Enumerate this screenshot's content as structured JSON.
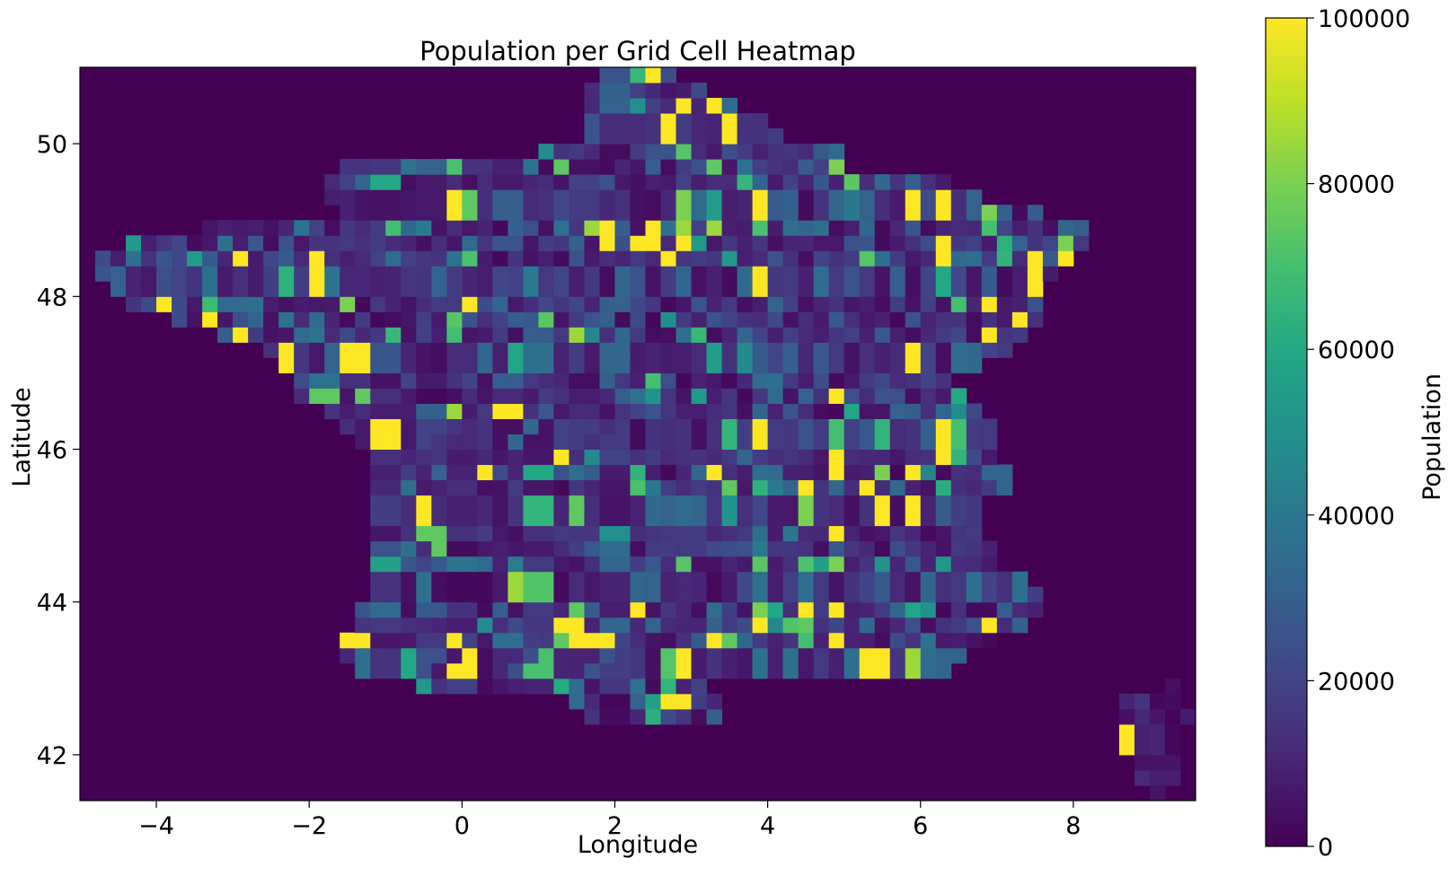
{
  "chart_data": {
    "type": "heatmap",
    "title": "Population per Grid Cell Heatmap",
    "xlabel": "Longitude",
    "ylabel": "Latitude",
    "xlim": [
      -5.0,
      9.6
    ],
    "ylim": [
      41.4,
      51.0
    ],
    "cell_size_deg": 0.2,
    "x_ticks": [
      -4,
      -2,
      0,
      2,
      4,
      6,
      8
    ],
    "x_tick_labels": [
      "−4",
      "−2",
      "0",
      "2",
      "4",
      "6",
      "8"
    ],
    "y_ticks": [
      42,
      44,
      46,
      48,
      50
    ],
    "y_tick_labels": [
      "42",
      "44",
      "46",
      "48",
      "50"
    ],
    "colormap": "viridis",
    "colorbar": {
      "label": "Population",
      "min": 0,
      "max": 100000,
      "ticks": [
        0,
        20000,
        40000,
        60000,
        80000,
        100000
      ],
      "tick_labels": [
        "0",
        "20000",
        "40000",
        "60000",
        "80000",
        "100000"
      ]
    },
    "background_value": 0,
    "land_extent": [
      [
        42.5,
        1.6,
        3.4
      ],
      [
        42.7,
        1.4,
        3.4
      ],
      [
        42.9,
        -0.6,
        3.2
      ],
      [
        43.1,
        -1.4,
        6.4
      ],
      [
        43.3,
        -1.6,
        6.6
      ],
      [
        43.5,
        -1.6,
        7.0
      ],
      [
        43.7,
        -1.4,
        7.4
      ],
      [
        43.9,
        -1.4,
        7.6
      ],
      [
        44.1,
        -1.2,
        7.6
      ],
      [
        44.3,
        -1.2,
        7.4
      ],
      [
        44.5,
        -1.2,
        7.0
      ],
      [
        44.7,
        -1.2,
        7.0
      ],
      [
        44.9,
        -1.2,
        6.8
      ],
      [
        45.1,
        -1.2,
        6.8
      ],
      [
        45.3,
        -1.2,
        6.8
      ],
      [
        45.5,
        -1.2,
        7.2
      ],
      [
        45.7,
        -1.2,
        7.2
      ],
      [
        45.9,
        -1.2,
        7.0
      ],
      [
        46.1,
        -1.4,
        7.0
      ],
      [
        46.3,
        -1.6,
        7.0
      ],
      [
        46.5,
        -1.8,
        6.8
      ],
      [
        46.7,
        -2.2,
        6.6
      ],
      [
        46.9,
        -2.2,
        6.4
      ],
      [
        47.1,
        -2.4,
        6.8
      ],
      [
        47.3,
        -2.6,
        7.2
      ],
      [
        47.5,
        -3.2,
        7.4
      ],
      [
        47.7,
        -3.8,
        7.6
      ],
      [
        47.9,
        -4.4,
        7.6
      ],
      [
        48.1,
        -4.6,
        7.6
      ],
      [
        48.3,
        -4.8,
        7.8
      ],
      [
        48.5,
        -4.8,
        8.0
      ],
      [
        48.7,
        -4.4,
        8.2
      ],
      [
        48.9,
        -3.4,
        8.2
      ],
      [
        49.1,
        -1.6,
        7.6
      ],
      [
        49.3,
        -1.8,
        6.8
      ],
      [
        49.5,
        -1.8,
        6.4
      ],
      [
        49.7,
        -1.6,
        5.0
      ],
      [
        49.9,
        1.0,
        5.0
      ],
      [
        50.1,
        1.6,
        4.2
      ],
      [
        50.3,
        1.6,
        4.0
      ],
      [
        50.5,
        1.6,
        3.6
      ],
      [
        50.7,
        1.6,
        3.2
      ],
      [
        50.9,
        1.8,
        2.8
      ]
    ],
    "corsica_extent": [
      [
        41.5,
        9.0,
        9.2
      ],
      [
        41.7,
        8.8,
        9.4
      ],
      [
        41.9,
        8.8,
        9.4
      ],
      [
        42.1,
        8.6,
        9.4
      ],
      [
        42.3,
        8.6,
        9.4
      ],
      [
        42.5,
        8.6,
        9.6
      ],
      [
        42.7,
        8.6,
        9.4
      ],
      [
        42.9,
        9.2,
        9.4
      ]
    ],
    "hotspots": [
      [
        2.3,
        48.8,
        100000
      ],
      [
        2.5,
        48.7,
        100000
      ],
      [
        2.1,
        48.9,
        100000
      ],
      [
        2.5,
        49.0,
        100000
      ],
      [
        2.7,
        48.6,
        100000
      ],
      [
        2.9,
        48.8,
        100000
      ],
      [
        1.9,
        48.7,
        100000
      ],
      [
        3.1,
        50.6,
        100000
      ],
      [
        2.9,
        50.5,
        100000
      ],
      [
        3.3,
        50.5,
        100000
      ],
      [
        3.5,
        50.3,
        100000
      ],
      [
        3.7,
        50.3,
        100000
      ],
      [
        2.7,
        50.3,
        100000
      ],
      [
        2.5,
        50.9,
        100000
      ],
      [
        2.2,
        50.0,
        100000
      ],
      [
        4.9,
        45.9,
        100000
      ],
      [
        4.9,
        45.7,
        100000
      ],
      [
        5.1,
        45.7,
        100000
      ],
      [
        5.3,
        45.6,
        100000
      ],
      [
        4.6,
        45.6,
        100000
      ],
      [
        4.4,
        45.4,
        100000
      ],
      [
        5.7,
        45.2,
        100000
      ],
      [
        5.9,
        45.2,
        100000
      ],
      [
        5.5,
        43.4,
        100000
      ],
      [
        5.3,
        43.3,
        100000
      ],
      [
        5.7,
        43.3,
        100000
      ],
      [
        5.9,
        43.1,
        100000
      ],
      [
        7.3,
        43.6,
        100000
      ],
      [
        7.1,
        43.7,
        100000
      ],
      [
        7.5,
        43.8,
        100000
      ],
      [
        4.9,
        44.0,
        100000
      ],
      [
        5.1,
        44.0,
        100000
      ],
      [
        4.1,
        43.7,
        100000
      ],
      [
        3.9,
        43.7,
        100000
      ],
      [
        4.5,
        43.9,
        100000
      ],
      [
        1.3,
        43.7,
        100000
      ],
      [
        1.5,
        43.7,
        100000
      ],
      [
        1.5,
        43.5,
        100000
      ],
      [
        1.7,
        43.5,
        100000
      ],
      [
        -1.5,
        43.5,
        100000
      ],
      [
        -1.3,
        43.5,
        100000
      ],
      [
        0.1,
        43.3,
        100000
      ],
      [
        -0.3,
        43.5,
        100000
      ],
      [
        -0.5,
        44.9,
        100000
      ],
      [
        -0.5,
        45.1,
        100000
      ],
      [
        0.3,
        45.7,
        100000
      ],
      [
        1.3,
        45.9,
        100000
      ],
      [
        -1.5,
        47.3,
        100000
      ],
      [
        -1.3,
        47.3,
        100000
      ],
      [
        -2.1,
        47.3,
        100000
      ],
      [
        -1.1,
        46.1,
        100000
      ],
      [
        -1.7,
        48.1,
        100000
      ],
      [
        -1.5,
        47.9,
        100000
      ],
      [
        -4.5,
        48.4,
        100000
      ],
      [
        -3.9,
        47.9,
        100000
      ],
      [
        -3.3,
        47.7,
        100000
      ],
      [
        -2.7,
        48.6,
        100000
      ],
      [
        -1.9,
        48.6,
        100000
      ],
      [
        -2.7,
        47.5,
        100000
      ],
      [
        0.9,
        47.4,
        100000
      ],
      [
        0.7,
        47.4,
        100000
      ],
      [
        -0.5,
        47.4,
        100000
      ],
      [
        0.5,
        46.6,
        100000
      ],
      [
        1.3,
        49.4,
        100000
      ],
      [
        1.1,
        49.4,
        100000
      ],
      [
        0.3,
        49.4,
        100000
      ],
      [
        -0.3,
        49.2,
        100000
      ],
      [
        0.3,
        47.9,
        100000
      ],
      [
        3.9,
        48.2,
        100000
      ],
      [
        3.1,
        49.4,
        100000
      ],
      [
        4.1,
        49.2,
        100000
      ],
      [
        6.1,
        49.3,
        100000
      ],
      [
        6.3,
        49.3,
        100000
      ],
      [
        6.1,
        49.1,
        100000
      ],
      [
        6.3,
        48.6,
        100000
      ],
      [
        6.3,
        48.7,
        100000
      ],
      [
        7.7,
        48.6,
        100000
      ],
      [
        7.9,
        48.6,
        100000
      ],
      [
        7.5,
        48.2,
        100000
      ],
      [
        7.3,
        47.7,
        100000
      ],
      [
        7.1,
        47.9,
        100000
      ],
      [
        6.9,
        47.5,
        100000
      ],
      [
        6.1,
        47.2,
        100000
      ],
      [
        5.1,
        47.4,
        100000
      ],
      [
        4.9,
        46.8,
        100000
      ],
      [
        4.1,
        46.1,
        100000
      ],
      [
        3.3,
        45.8,
        100000
      ],
      [
        6.3,
        45.9,
        100000
      ],
      [
        6.1,
        45.7,
        100000
      ],
      [
        6.3,
        46.3,
        100000
      ],
      [
        2.3,
        44.0,
        100000
      ],
      [
        3.0,
        42.7,
        100000
      ],
      [
        2.8,
        42.7,
        100000
      ],
      [
        8.7,
        42.1,
        100000
      ],
      [
        3.3,
        43.5,
        100000
      ],
      [
        3.1,
        43.3,
        100000
      ],
      [
        5.1,
        45.0,
        100000
      ],
      [
        4.9,
        43.5,
        100000
      ],
      [
        6.1,
        43.3,
        100000
      ],
      [
        1.7,
        49.0,
        85000
      ],
      [
        3.1,
        49.0,
        85000
      ],
      [
        3.3,
        48.9,
        85000
      ],
      [
        4.7,
        45.1,
        85000
      ],
      [
        9.3,
        42.7,
        85000
      ],
      [
        1.5,
        47.6,
        85000
      ],
      [
        -0.3,
        46.5,
        85000
      ],
      [
        0.7,
        44.1,
        85000
      ],
      [
        4.9,
        45.4,
        85000
      ],
      [
        4.7,
        45.3,
        80000
      ],
      [
        5.5,
        45.8,
        80000
      ],
      [
        4.9,
        44.6,
        80000
      ],
      [
        6.9,
        49.1,
        80000
      ],
      [
        7.9,
        48.8,
        80000
      ],
      [
        4.9,
        49.7,
        80000
      ],
      [
        4.1,
        43.9,
        80000
      ],
      [
        2.9,
        49.1,
        80000
      ],
      [
        0.1,
        49.1,
        75000
      ],
      [
        -0.5,
        44.9,
        75000
      ],
      [
        -0.3,
        45.0,
        75000
      ],
      [
        1.5,
        43.9,
        75000
      ],
      [
        2.5,
        47.0,
        70000
      ],
      [
        3.3,
        49.8,
        75000
      ],
      [
        5.7,
        43.4,
        80000
      ],
      [
        6.9,
        43.4,
        80000
      ],
      [
        5.9,
        43.3,
        85000
      ],
      [
        4.7,
        43.7,
        75000
      ],
      [
        3.7,
        43.5,
        75000
      ],
      [
        3.5,
        43.5,
        75000
      ],
      [
        1.3,
        43.5,
        75000
      ],
      [
        3.5,
        45.5,
        75000
      ],
      [
        -4.1,
        48.4,
        75000
      ],
      [
        -1.7,
        46.7,
        75000
      ],
      [
        -1.3,
        46.7,
        75000
      ],
      [
        -0.3,
        44.7,
        75000
      ],
      [
        -1.5,
        47.9,
        80000
      ],
      [
        2.7,
        42.9,
        65000
      ],
      [
        1.5,
        45.1,
        75000
      ],
      [
        0.9,
        45.1,
        65000
      ],
      [
        7.1,
        49.0,
        70000
      ],
      [
        6.7,
        48.0,
        70000
      ],
      [
        6.7,
        46.0,
        65000
      ],
      [
        6.5,
        46.2,
        70000
      ],
      [
        5.5,
        46.2,
        65000
      ],
      [
        4.9,
        46.2,
        70000
      ],
      [
        3.5,
        46.3,
        65000
      ],
      [
        3.3,
        47.1,
        55000
      ],
      [
        2.5,
        47.4,
        70000
      ]
    ]
  }
}
